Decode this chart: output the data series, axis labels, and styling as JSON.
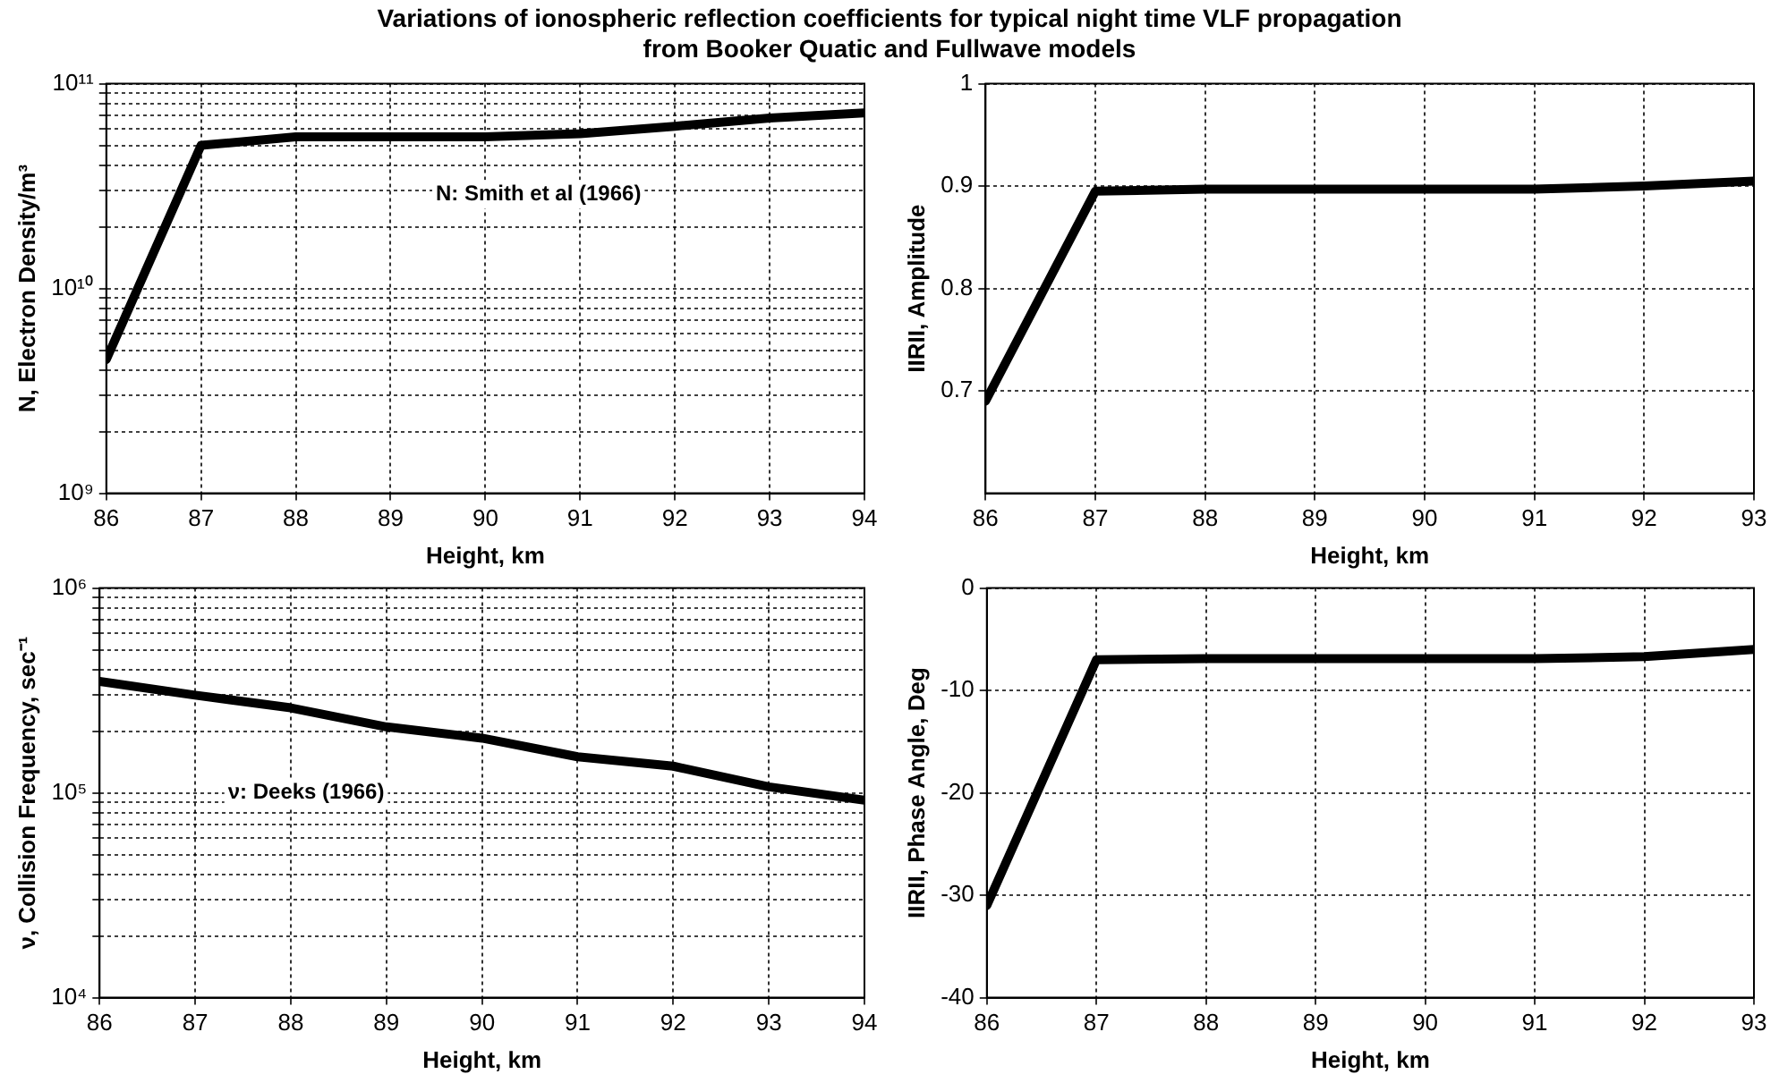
{
  "chart_data": [
    {
      "type": "line",
      "title": "Variations of ionospheric reflection coefficients for typical night time  VLF propagation\nfrom Booker Quatic  and Fullwave models",
      "xlabel": "Height, km",
      "ylabel": "N, Electron Density/m³",
      "log": "y",
      "grid": true,
      "marker": "none",
      "line_style": "solid",
      "x": [
        86,
        87,
        88,
        89,
        90,
        91,
        92,
        93,
        94
      ],
      "series": [
        {
          "color": "#000000",
          "values": [
            4500000000.0,
            50000000000.0,
            55000000000.0,
            55000000000.0,
            55000000000.0,
            57000000000.0,
            62000000000.0,
            68000000000.0,
            72000000000.0
          ]
        }
      ],
      "xlim": [
        86,
        94
      ],
      "xticks": [
        86,
        87,
        88,
        89,
        90,
        91,
        92,
        93,
        94
      ],
      "ylim": [
        1000000000.0,
        100000000000.0
      ],
      "yticks": [
        {
          "value": 1000000000.0,
          "label": "10⁹"
        },
        {
          "value": 2000000000.0,
          "label": null
        },
        {
          "value": 3000000000.0,
          "label": null
        },
        {
          "value": 4000000000.0,
          "label": null
        },
        {
          "value": 5000000000.0,
          "label": null
        },
        {
          "value": 6000000000.0,
          "label": null
        },
        {
          "value": 7000000000.0,
          "label": null
        },
        {
          "value": 8000000000.0,
          "label": null
        },
        {
          "value": 9000000000.0,
          "label": null
        },
        {
          "value": 10000000000.0,
          "label": "10¹⁰"
        },
        {
          "value": 20000000000.0,
          "label": null
        },
        {
          "value": 30000000000.0,
          "label": null
        },
        {
          "value": 40000000000.0,
          "label": null
        },
        {
          "value": 50000000000.0,
          "label": null
        },
        {
          "value": 60000000000.0,
          "label": null
        },
        {
          "value": 70000000000.0,
          "label": null
        },
        {
          "value": 80000000000.0,
          "label": null
        },
        {
          "value": 90000000000.0,
          "label": null
        },
        {
          "value": 100000000000.0,
          "label": "10¹¹"
        }
      ],
      "annotations": [
        "N: Smith et al (1966)"
      ]
    },
    {
      "type": "line",
      "xlabel": "Height, km",
      "ylabel": "IIRII, Amplitude",
      "grid": true,
      "marker": "none",
      "line_style": "solid",
      "x": [
        86,
        87,
        88,
        89,
        90,
        91,
        92,
        93
      ],
      "series": [
        {
          "color": "#000000",
          "values": [
            0.69,
            0.895,
            0.897,
            0.897,
            0.897,
            0.897,
            0.9,
            0.905
          ]
        }
      ],
      "xlim": [
        86,
        93
      ],
      "xticks": [
        86,
        87,
        88,
        89,
        90,
        91,
        92,
        93
      ],
      "ylim": [
        0.6,
        1
      ],
      "yticks": [
        0.7,
        0.8,
        0.9,
        1
      ]
    },
    {
      "type": "line",
      "xlabel": "Height, km",
      "ylabel": "ν, Collision Frequency, sec⁻¹",
      "log": "y",
      "grid": true,
      "marker": "none",
      "line_style": "solid",
      "x": [
        86,
        87,
        88,
        89,
        90,
        91,
        92,
        93,
        94
      ],
      "series": [
        {
          "color": "#000000",
          "values": [
            350000.0,
            300000.0,
            260000.0,
            210000.0,
            185000.0,
            150000.0,
            135000.0,
            107000.0,
            92000.0
          ]
        }
      ],
      "xlim": [
        86,
        94
      ],
      "xticks": [
        86,
        87,
        88,
        89,
        90,
        91,
        92,
        93,
        94
      ],
      "ylim": [
        10000.0,
        1000000.0
      ],
      "yticks": [
        {
          "value": 10000.0,
          "label": "10⁴"
        },
        {
          "value": 20000.0,
          "label": null
        },
        {
          "value": 30000.0,
          "label": null
        },
        {
          "value": 40000.0,
          "label": null
        },
        {
          "value": 50000.0,
          "label": null
        },
        {
          "value": 60000.0,
          "label": null
        },
        {
          "value": 70000.0,
          "label": null
        },
        {
          "value": 80000.0,
          "label": null
        },
        {
          "value": 90000.0,
          "label": null
        },
        {
          "value": 100000.0,
          "label": "10⁵"
        },
        {
          "value": 200000.0,
          "label": null
        },
        {
          "value": 300000.0,
          "label": null
        },
        {
          "value": 400000.0,
          "label": null
        },
        {
          "value": 500000.0,
          "label": null
        },
        {
          "value": 600000.0,
          "label": null
        },
        {
          "value": 700000.0,
          "label": null
        },
        {
          "value": 800000.0,
          "label": null
        },
        {
          "value": 900000.0,
          "label": null
        },
        {
          "value": 1000000.0,
          "label": "10⁶"
        }
      ],
      "annotations": [
        "ν: Deeks (1966)"
      ]
    },
    {
      "type": "line",
      "xlabel": "Height, km",
      "ylabel": "IIRII, Phase Angle, Deg",
      "grid": true,
      "marker": "none",
      "line_style": "solid",
      "x": [
        86,
        87,
        88,
        89,
        90,
        91,
        92,
        93
      ],
      "series": [
        {
          "color": "#000000",
          "values": [
            -31,
            -7,
            -6.9,
            -6.9,
            -6.9,
            -6.9,
            -6.7,
            -6
          ]
        }
      ],
      "xlim": [
        86,
        93
      ],
      "xticks": [
        86,
        87,
        88,
        89,
        90,
        91,
        92,
        93
      ],
      "ylim": [
        -40,
        0
      ],
      "yticks": [
        -40,
        -30,
        -20,
        -10,
        0
      ]
    }
  ]
}
